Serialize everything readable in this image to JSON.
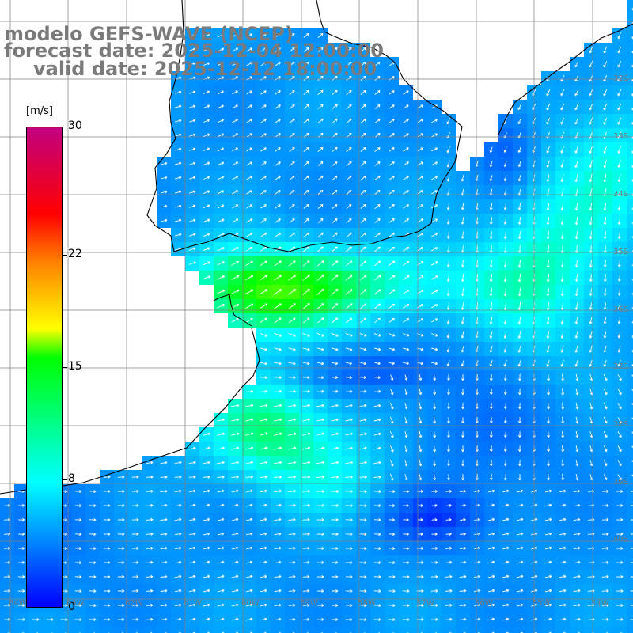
{
  "title": {
    "line1": "modelo GEFS-WAVE (NCEP)",
    "line2": "forecast date: 2025-12-04 12:00:00",
    "line3": "valid date: 2025-12-12 18:00:00"
  },
  "colorbar": {
    "unit": "[m/s]",
    "ticks": [
      "30",
      "22",
      "15",
      "8",
      "0"
    ],
    "tick_values": [
      30,
      22,
      15,
      8,
      0
    ],
    "range": [
      0,
      30
    ],
    "colors": [
      "#0000ff",
      "#0080ff",
      "#00ffff",
      "#00ff00",
      "#ffff00",
      "#ff8000",
      "#ff0000",
      "#c00080"
    ]
  },
  "lat_labels": [
    "32S",
    "33S",
    "34S",
    "35S",
    "36S",
    "37S",
    "38S",
    "39S",
    "40S"
  ],
  "lon_labels": [
    "64W",
    "63W",
    "62W",
    "61W",
    "60W",
    "59W",
    "58W",
    "57W",
    "56W",
    "55W",
    "54W"
  ],
  "colors": {
    "land": "#ffffff",
    "coast": "#000000",
    "grid": "#808080",
    "arrow": "#ffffff",
    "title": "#7a7a7a"
  }
}
